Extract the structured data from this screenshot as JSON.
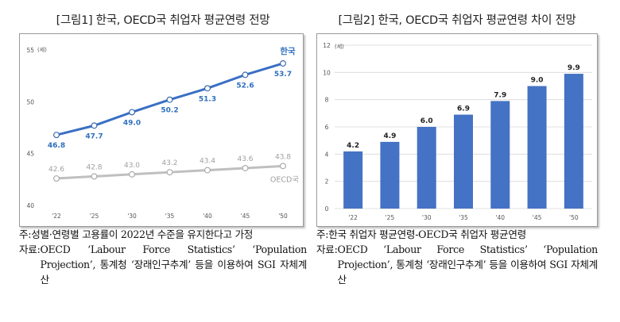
{
  "charts": [
    {
      "figure_title": "[그림1] 한국, OECD국 취업자 평균연령 전망",
      "chart_data": {
        "type": "line",
        "categories": [
          "'22",
          "'25",
          "'30",
          "'35",
          "'40",
          "'45",
          "'50"
        ],
        "series": [
          {
            "name": "한국",
            "values": [
              46.8,
              47.7,
              49.0,
              50.2,
              51.3,
              52.6,
              53.7
            ],
            "color": "#3a6fc4",
            "label_color": "#2e6fbf"
          },
          {
            "name": "OECD국",
            "values": [
              42.6,
              42.8,
              43.0,
              43.2,
              43.4,
              43.6,
              43.8
            ],
            "color": "#bfbfbf",
            "label_color": "#a0a0a0"
          }
        ],
        "unit": "(세)",
        "yticks": [
          40,
          45,
          50,
          55
        ],
        "ylim": [
          40,
          55
        ],
        "grid": false
      },
      "notes": [
        {
          "prefix": "주: ",
          "text": "성별·연령별 고용률이 2022년 수준을 유지한다고 가정"
        },
        {
          "prefix": "자료: ",
          "text": "OECD ‘Labour Force Statistics’ ‘Population Projection’, 통계청 ‘장래인구추계’ 등을 이용하여 SGI 자체계산"
        }
      ]
    },
    {
      "figure_title": "[그림2] 한국, OECD국 취업자 평균연령 차이 전망",
      "chart_data": {
        "type": "bar",
        "categories": [
          "'22",
          "'25",
          "'30",
          "'35",
          "'40",
          "'45",
          "'50"
        ],
        "values": [
          4.2,
          4.9,
          6.0,
          6.9,
          7.9,
          9.0,
          9.9
        ],
        "value_labels": [
          "4.2",
          "4.9",
          "6.0",
          "6.9",
          "7.9",
          "9.0",
          "9.9"
        ],
        "unit": "(세)",
        "yticks": [
          0,
          2,
          4,
          6,
          8,
          10,
          12
        ],
        "ytick_labels": [
          "0",
          "2",
          "4",
          "6",
          "8",
          "10",
          "12"
        ],
        "ylim": [
          0,
          12
        ],
        "grid": true,
        "color": "#4472c4"
      },
      "notes": [
        {
          "prefix": "주: ",
          "text": "한국 취업자 평균연령-OECD국 취업자 평균연령"
        },
        {
          "prefix": "자료: ",
          "text": "OECD ‘Labour Force Statistics’ ‘Population Projection’, 통계청 ‘장래인구추계’ 등을 이용하여 SGI 자체계산"
        }
      ]
    }
  ]
}
